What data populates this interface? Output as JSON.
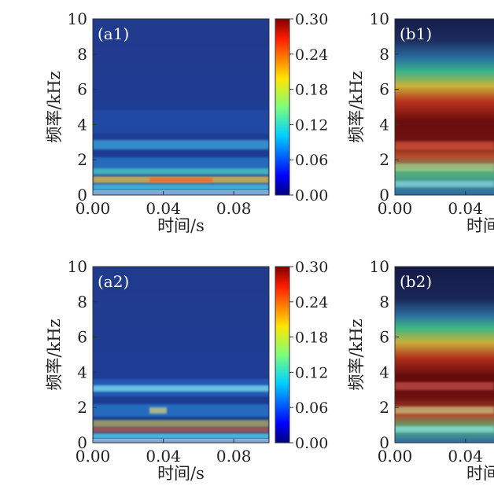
{
  "chart_data": [
    {
      "id": "a1",
      "type": "heatmap",
      "panel_label": "(a1)",
      "xlabel": "时间/s",
      "ylabel": "频率/kHz",
      "xlim": [
        0,
        0.1
      ],
      "ylim": [
        0,
        10
      ],
      "x_ticks": [
        "0.00",
        "0.04",
        "0.08"
      ],
      "y_ticks": [
        "0",
        "2",
        "4",
        "6",
        "8",
        "10"
      ],
      "colorbar": {
        "min": 0.0,
        "max": 0.3,
        "ticks": [
          "0.00",
          "0.06",
          "0.12",
          "0.18",
          "0.24",
          "0.30"
        ],
        "colormap": "jet"
      },
      "bands": [
        {
          "freq_khz": 0.4,
          "intensity": 0.2
        },
        {
          "freq_khz": 0.9,
          "intensity": 0.26
        },
        {
          "freq_khz": 1.4,
          "intensity": 0.16
        },
        {
          "freq_khz": 2.8,
          "intensity": 0.1
        },
        {
          "freq_khz": 4.0,
          "intensity": 0.05
        }
      ]
    },
    {
      "id": "b1",
      "type": "heatmap",
      "panel_label": "(b1)",
      "xlabel": "时间",
      "ylabel": "频率/kHz",
      "xlim": [
        0,
        0.1
      ],
      "ylim": [
        0,
        10
      ],
      "x_ticks": [
        "0.00",
        "0.04"
      ],
      "y_ticks": [
        "0",
        "2",
        "4",
        "6",
        "8",
        "10"
      ],
      "colormap": "jet-dark",
      "bands": [
        {
          "freq_khz": 9.0,
          "level": 0.0
        },
        {
          "freq_khz": 7.0,
          "level": 0.3
        },
        {
          "freq_khz": 6.0,
          "level": 0.5
        },
        {
          "freq_khz": 5.0,
          "level": 0.75
        },
        {
          "freq_khz": 4.0,
          "level": 0.95
        },
        {
          "freq_khz": 3.0,
          "level": 0.85
        },
        {
          "freq_khz": 2.0,
          "level": 0.55
        },
        {
          "freq_khz": 1.0,
          "level": 0.3
        }
      ]
    },
    {
      "id": "a2",
      "type": "heatmap",
      "panel_label": "(a2)",
      "xlabel": "时间/s",
      "ylabel": "频率/kHz",
      "xlim": [
        0,
        0.1
      ],
      "ylim": [
        0,
        10
      ],
      "x_ticks": [
        "0.00",
        "0.04",
        "0.08"
      ],
      "y_ticks": [
        "0",
        "2",
        "4",
        "6",
        "8",
        "10"
      ],
      "colorbar": {
        "min": 0.0,
        "max": 0.3,
        "ticks": [
          "0.00",
          "0.06",
          "0.12",
          "0.18",
          "0.24",
          "0.30"
        ],
        "colormap": "jet"
      },
      "bands": [
        {
          "freq_khz": 0.5,
          "intensity": 0.22
        },
        {
          "freq_khz": 1.0,
          "intensity": 0.18
        },
        {
          "freq_khz": 1.8,
          "intensity": 0.12
        },
        {
          "freq_khz": 3.2,
          "intensity": 0.11
        }
      ]
    },
    {
      "id": "b2",
      "type": "heatmap",
      "panel_label": "(b2)",
      "xlabel": "时间",
      "ylabel": "频率/kHz",
      "xlim": [
        0,
        0.1
      ],
      "ylim": [
        0,
        10
      ],
      "x_ticks": [
        "0.00",
        "0.04"
      ],
      "y_ticks": [
        "0",
        "2",
        "4",
        "6",
        "8",
        "10"
      ],
      "colormap": "jet-dark",
      "bands": [
        {
          "freq_khz": 9.0,
          "level": 0.0
        },
        {
          "freq_khz": 7.5,
          "level": 0.2
        },
        {
          "freq_khz": 6.5,
          "level": 0.45
        },
        {
          "freq_khz": 5.5,
          "level": 0.7
        },
        {
          "freq_khz": 4.0,
          "level": 0.95
        },
        {
          "freq_khz": 3.0,
          "level": 0.85
        },
        {
          "freq_khz": 2.0,
          "level": 0.6
        },
        {
          "freq_khz": 1.0,
          "level": 0.3
        }
      ]
    }
  ]
}
